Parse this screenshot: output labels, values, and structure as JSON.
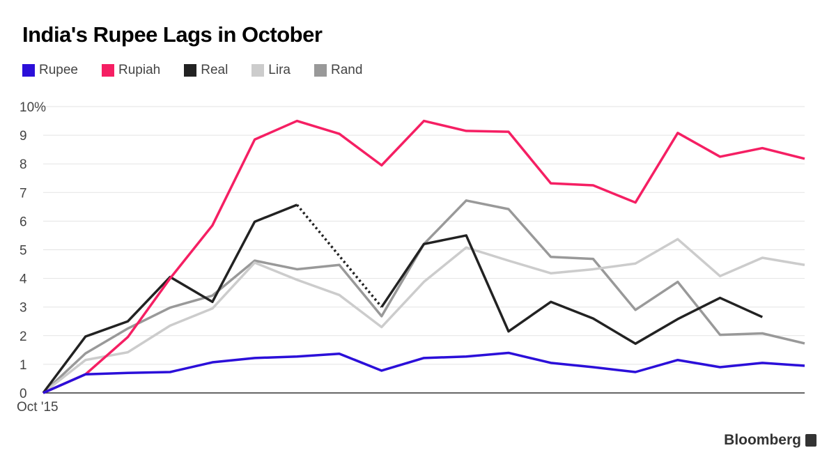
{
  "chart_data": {
    "type": "line",
    "title": "India's Rupee Lags in October",
    "xlabel": "",
    "ylabel": "",
    "x_tick_labels": [
      "Oct '15"
    ],
    "y_ticks": [
      "0",
      "1",
      "2",
      "3",
      "4",
      "5",
      "6",
      "7",
      "8",
      "9",
      "10%"
    ],
    "ylim": [
      0,
      10
    ],
    "n_points": 19,
    "grid": true,
    "legend_position": "top-left",
    "series": [
      {
        "name": "Rupee",
        "color": "#2b0fd9",
        "values": [
          0,
          0.65,
          0.7,
          0.73,
          1.07,
          1.22,
          1.27,
          1.37,
          0.78,
          1.22,
          1.27,
          1.4,
          1.05,
          0.9,
          0.73,
          1.15,
          0.9,
          1.05,
          0.95
        ]
      },
      {
        "name": "Rupiah",
        "color": "#f51f63",
        "values": [
          0,
          0.65,
          1.95,
          4.0,
          5.85,
          8.85,
          9.5,
          9.05,
          7.95,
          9.5,
          9.15,
          9.12,
          7.32,
          7.25,
          6.65,
          9.08,
          8.25,
          8.55,
          8.18
        ]
      },
      {
        "name": "Real",
        "color": "#222222",
        "values": [
          0,
          1.97,
          2.5,
          4.05,
          3.18,
          5.98,
          6.57,
          null,
          3.0,
          5.2,
          5.5,
          2.15,
          3.18,
          2.6,
          1.72,
          2.58,
          3.32,
          2.65,
          null
        ],
        "gap_style": "dotted"
      },
      {
        "name": "Lira",
        "color": "#cccccc",
        "values": [
          0,
          1.15,
          1.42,
          2.35,
          2.95,
          4.55,
          3.95,
          3.42,
          2.3,
          3.88,
          5.08,
          4.62,
          4.18,
          4.32,
          4.52,
          5.37,
          4.08,
          4.72,
          4.47
        ]
      },
      {
        "name": "Rand",
        "color": "#999999",
        "values": [
          0,
          1.38,
          2.25,
          2.98,
          3.4,
          4.62,
          4.32,
          4.47,
          2.68,
          5.2,
          6.72,
          6.42,
          4.75,
          4.68,
          2.9,
          3.88,
          2.03,
          2.08,
          1.73
        ]
      }
    ]
  },
  "source": "Bloomberg"
}
